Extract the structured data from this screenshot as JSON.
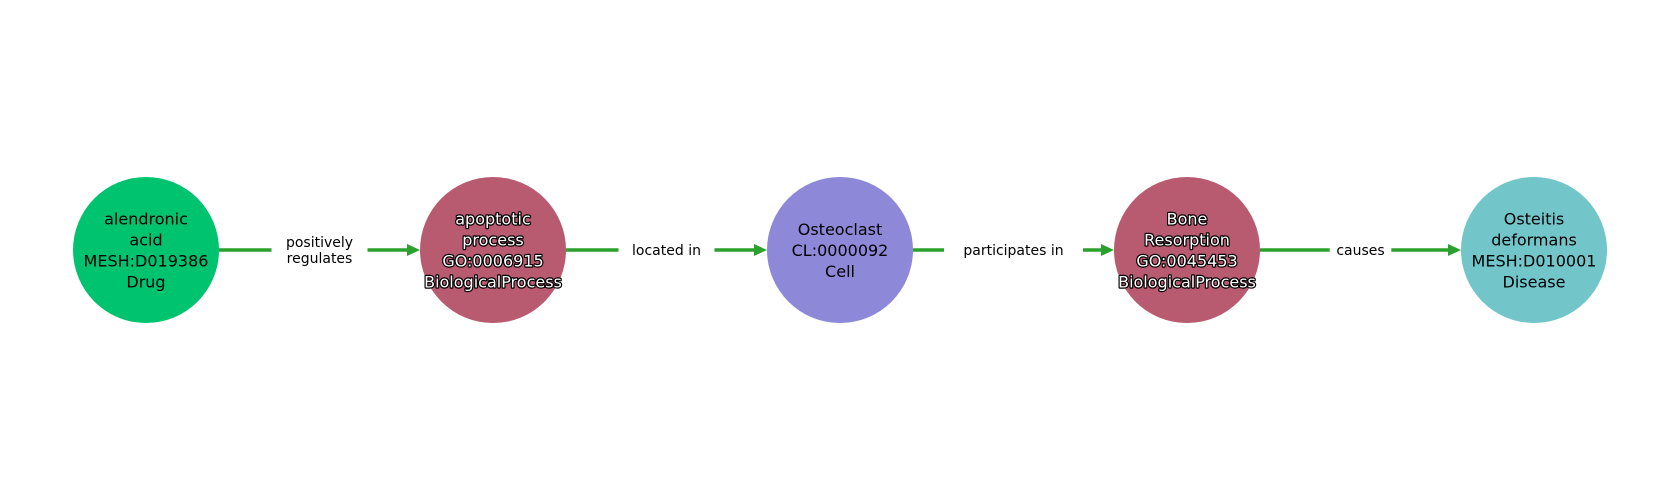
{
  "nodes": [
    {
      "id": "n1",
      "lines": [
        "alendronic",
        "acid",
        "MESH:D019386",
        "Drug"
      ],
      "color": "#00c36f",
      "text_style": "dark"
    },
    {
      "id": "n2",
      "lines": [
        "apoptotic",
        "process",
        "GO:0006915",
        "BiologicalProcess"
      ],
      "color": "#b85a70",
      "text_style": "light"
    },
    {
      "id": "n3",
      "lines": [
        "Osteoclast",
        "CL:0000092",
        "Cell"
      ],
      "color": "#8d88d8",
      "text_style": "dark"
    },
    {
      "id": "n4",
      "lines": [
        "Bone",
        "Resorption",
        "GO:0045453",
        "BiologicalProcess"
      ],
      "color": "#b85a70",
      "text_style": "light"
    },
    {
      "id": "n5",
      "lines": [
        "Osteitis",
        "deformans",
        "MESH:D010001",
        "Disease"
      ],
      "color": "#72c6ca",
      "text_style": "dark"
    }
  ],
  "edges": [
    {
      "from": "n1",
      "to": "n2",
      "lines": [
        "positively",
        "regulates"
      ]
    },
    {
      "from": "n2",
      "to": "n3",
      "lines": [
        "located in"
      ]
    },
    {
      "from": "n3",
      "to": "n4",
      "lines": [
        "participates in"
      ]
    },
    {
      "from": "n4",
      "to": "n5",
      "lines": [
        "causes"
      ]
    }
  ],
  "edge_color": "#2ca02c"
}
